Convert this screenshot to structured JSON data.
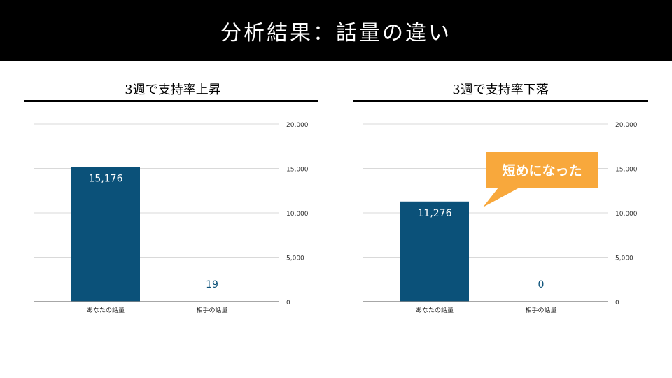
{
  "header": {
    "title": "分析結果：話量の違い"
  },
  "colors": {
    "bar": "#0b5179",
    "grid": "#d9d9d9",
    "axis": "#8a8a8a",
    "callout": "#f8a83c"
  },
  "callout": {
    "text": "短めになった"
  },
  "chart_data": [
    {
      "type": "bar",
      "title": "3週で支持率上昇",
      "categories": [
        "あなたの話量",
        "相手の話量"
      ],
      "values": [
        15176,
        19
      ],
      "value_labels": [
        "15,176",
        "19"
      ],
      "ylim": [
        0,
        20000
      ],
      "yticks": [
        "0",
        "5,000",
        "10,000",
        "15,000",
        "20,000"
      ],
      "grid": true
    },
    {
      "type": "bar",
      "title": "3週で支持率下落",
      "categories": [
        "あなたの話量",
        "相手の話量"
      ],
      "values": [
        11276,
        0
      ],
      "value_labels": [
        "11,276",
        "0"
      ],
      "ylim": [
        0,
        20000
      ],
      "yticks": [
        "0",
        "5,000",
        "10,000",
        "15,000",
        "20,000"
      ],
      "grid": true
    }
  ]
}
